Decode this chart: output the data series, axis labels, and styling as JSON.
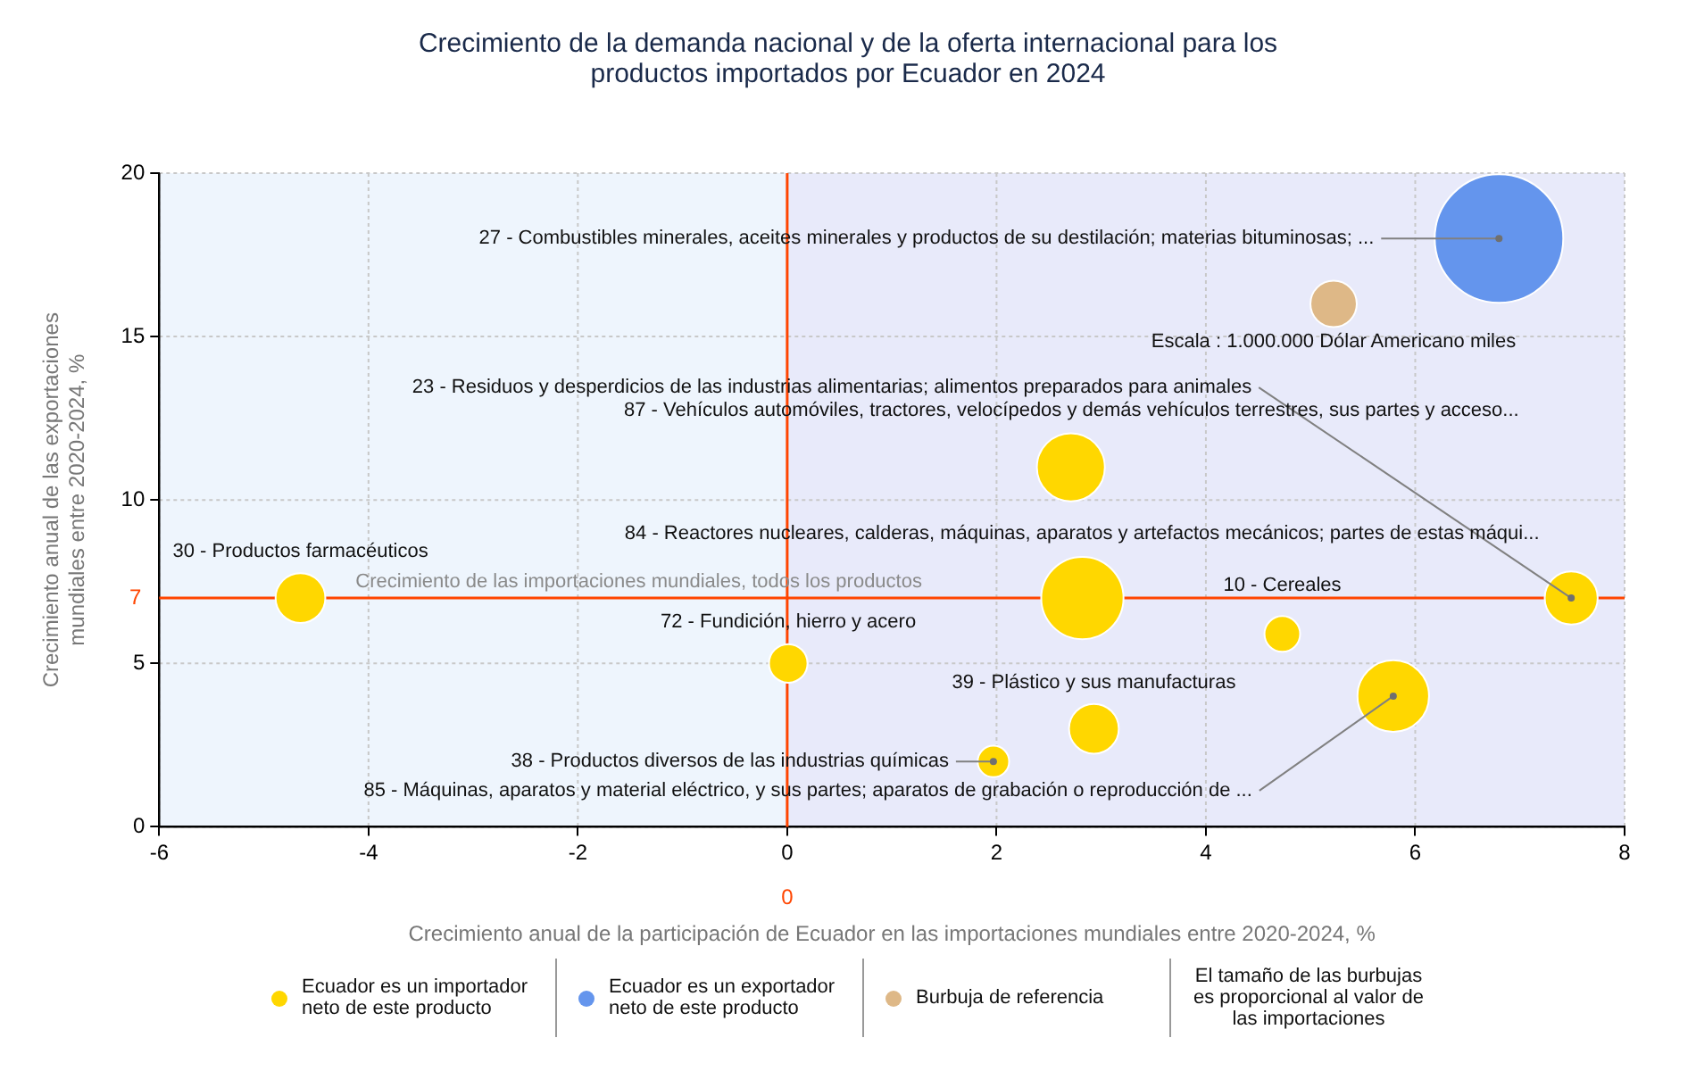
{
  "chart_data": {
    "type": "bubble",
    "title": "Crecimiento de la demanda nacional y de la oferta internacional para los productos importados por Ecuador en 2024",
    "xlabel": "Crecimiento anual de la participación de Ecuador en las importaciones mundiales entre 2020-2024, %",
    "ylabel": "Crecimiento anual de las exportaciones mundiales entre 2020-2024, %",
    "xlim": [
      -6,
      8
    ],
    "xticks": [
      -6,
      -4,
      -2,
      0,
      2,
      4,
      6,
      8
    ],
    "ylim": [
      0,
      20
    ],
    "yticks": [
      0,
      5,
      10,
      15,
      20
    ],
    "grid": true,
    "legend": "bottom",
    "series": [
      {
        "name": "Ecuador es un importador neto de este producto",
        "color": "#ffd700",
        "x": [
          7.49,
          2.71,
          2.82,
          -4.65,
          0.01,
          4.73,
          2.93,
          1.97,
          5.79
        ],
        "values": [
          7,
          11,
          7,
          7,
          5,
          5.9,
          3,
          2,
          4
        ],
        "sizes": [
          0.17,
          0.28,
          0.41,
          0.15,
          0.09,
          0.077,
          0.15,
          0.06,
          0.31
        ]
      },
      {
        "name": "Ecuador es un exportador neto de este producto",
        "color": "#6495ed",
        "x": [
          6.8
        ],
        "values": [
          18
        ],
        "sizes": [
          1
        ]
      },
      {
        "name": "Burbuja de referencia",
        "color": "#deb887",
        "x": [
          5.22
        ],
        "values": [
          16
        ],
        "sizes": [
          0.13
        ]
      }
    ],
    "ref_lines": [
      {
        "axis": "x",
        "value": 0,
        "label": "0",
        "color": "#ff4500"
      },
      {
        "axis": "y",
        "value": 7,
        "label": "7",
        "color": "#ff4500"
      }
    ],
    "bands": [
      {
        "axis": "x",
        "from": -6,
        "to": 0,
        "color": "#eef5fd"
      },
      {
        "axis": "x",
        "from": 0,
        "to": 8,
        "color": "#e8eafa"
      }
    ],
    "annotations": [
      {
        "text": "27 - Combustibles minerales, aceites minerales y productos de su destilación; materias bituminosas; ...",
        "x": 6.8,
        "y": 18
      },
      {
        "text": "23 - Residuos y desperdicios de las industrias alimentarias; alimentos preparados para animales",
        "x": 7.49,
        "y": 7
      },
      {
        "text": "87 - Vehículos automóviles, tractores, velocípedos y demás vehículos terrestres, sus partes y acceso...",
        "x": 2.71,
        "y": 11
      },
      {
        "text": "84 - Reactores nucleares, calderas, máquinas, aparatos y artefactos mecánicos; partes de estas máqui...",
        "x": 2.82,
        "y": 7
      },
      {
        "text": "30 - Productos farmacéuticos",
        "x": -4.65,
        "y": 7
      },
      {
        "text": "72 - Fundición, hierro y acero",
        "x": 0.01,
        "y": 5
      },
      {
        "text": "10 - Cereales",
        "x": 4.73,
        "y": 5.9
      },
      {
        "text": "39 - Plástico y sus manufacturas",
        "x": 2.93,
        "y": 3
      },
      {
        "text": "38 - Productos diversos de las industrias químicas",
        "x": 1.97,
        "y": 2
      },
      {
        "text": "85 - Máquinas, aparatos y material eléctrico, y sus partes; aparatos de grabación o reproducción de ...",
        "x": 5.79,
        "y": 4
      },
      {
        "text": "Escala : 1.000.000 Dólar Americano miles",
        "x": 5.22,
        "y": 16
      },
      {
        "text": "Crecimiento de las importaciones mundiales, todos los productos",
        "y": 7
      },
      "El tamaño de las burbujas es proporcional al valor de las importaciones"
    ]
  }
}
